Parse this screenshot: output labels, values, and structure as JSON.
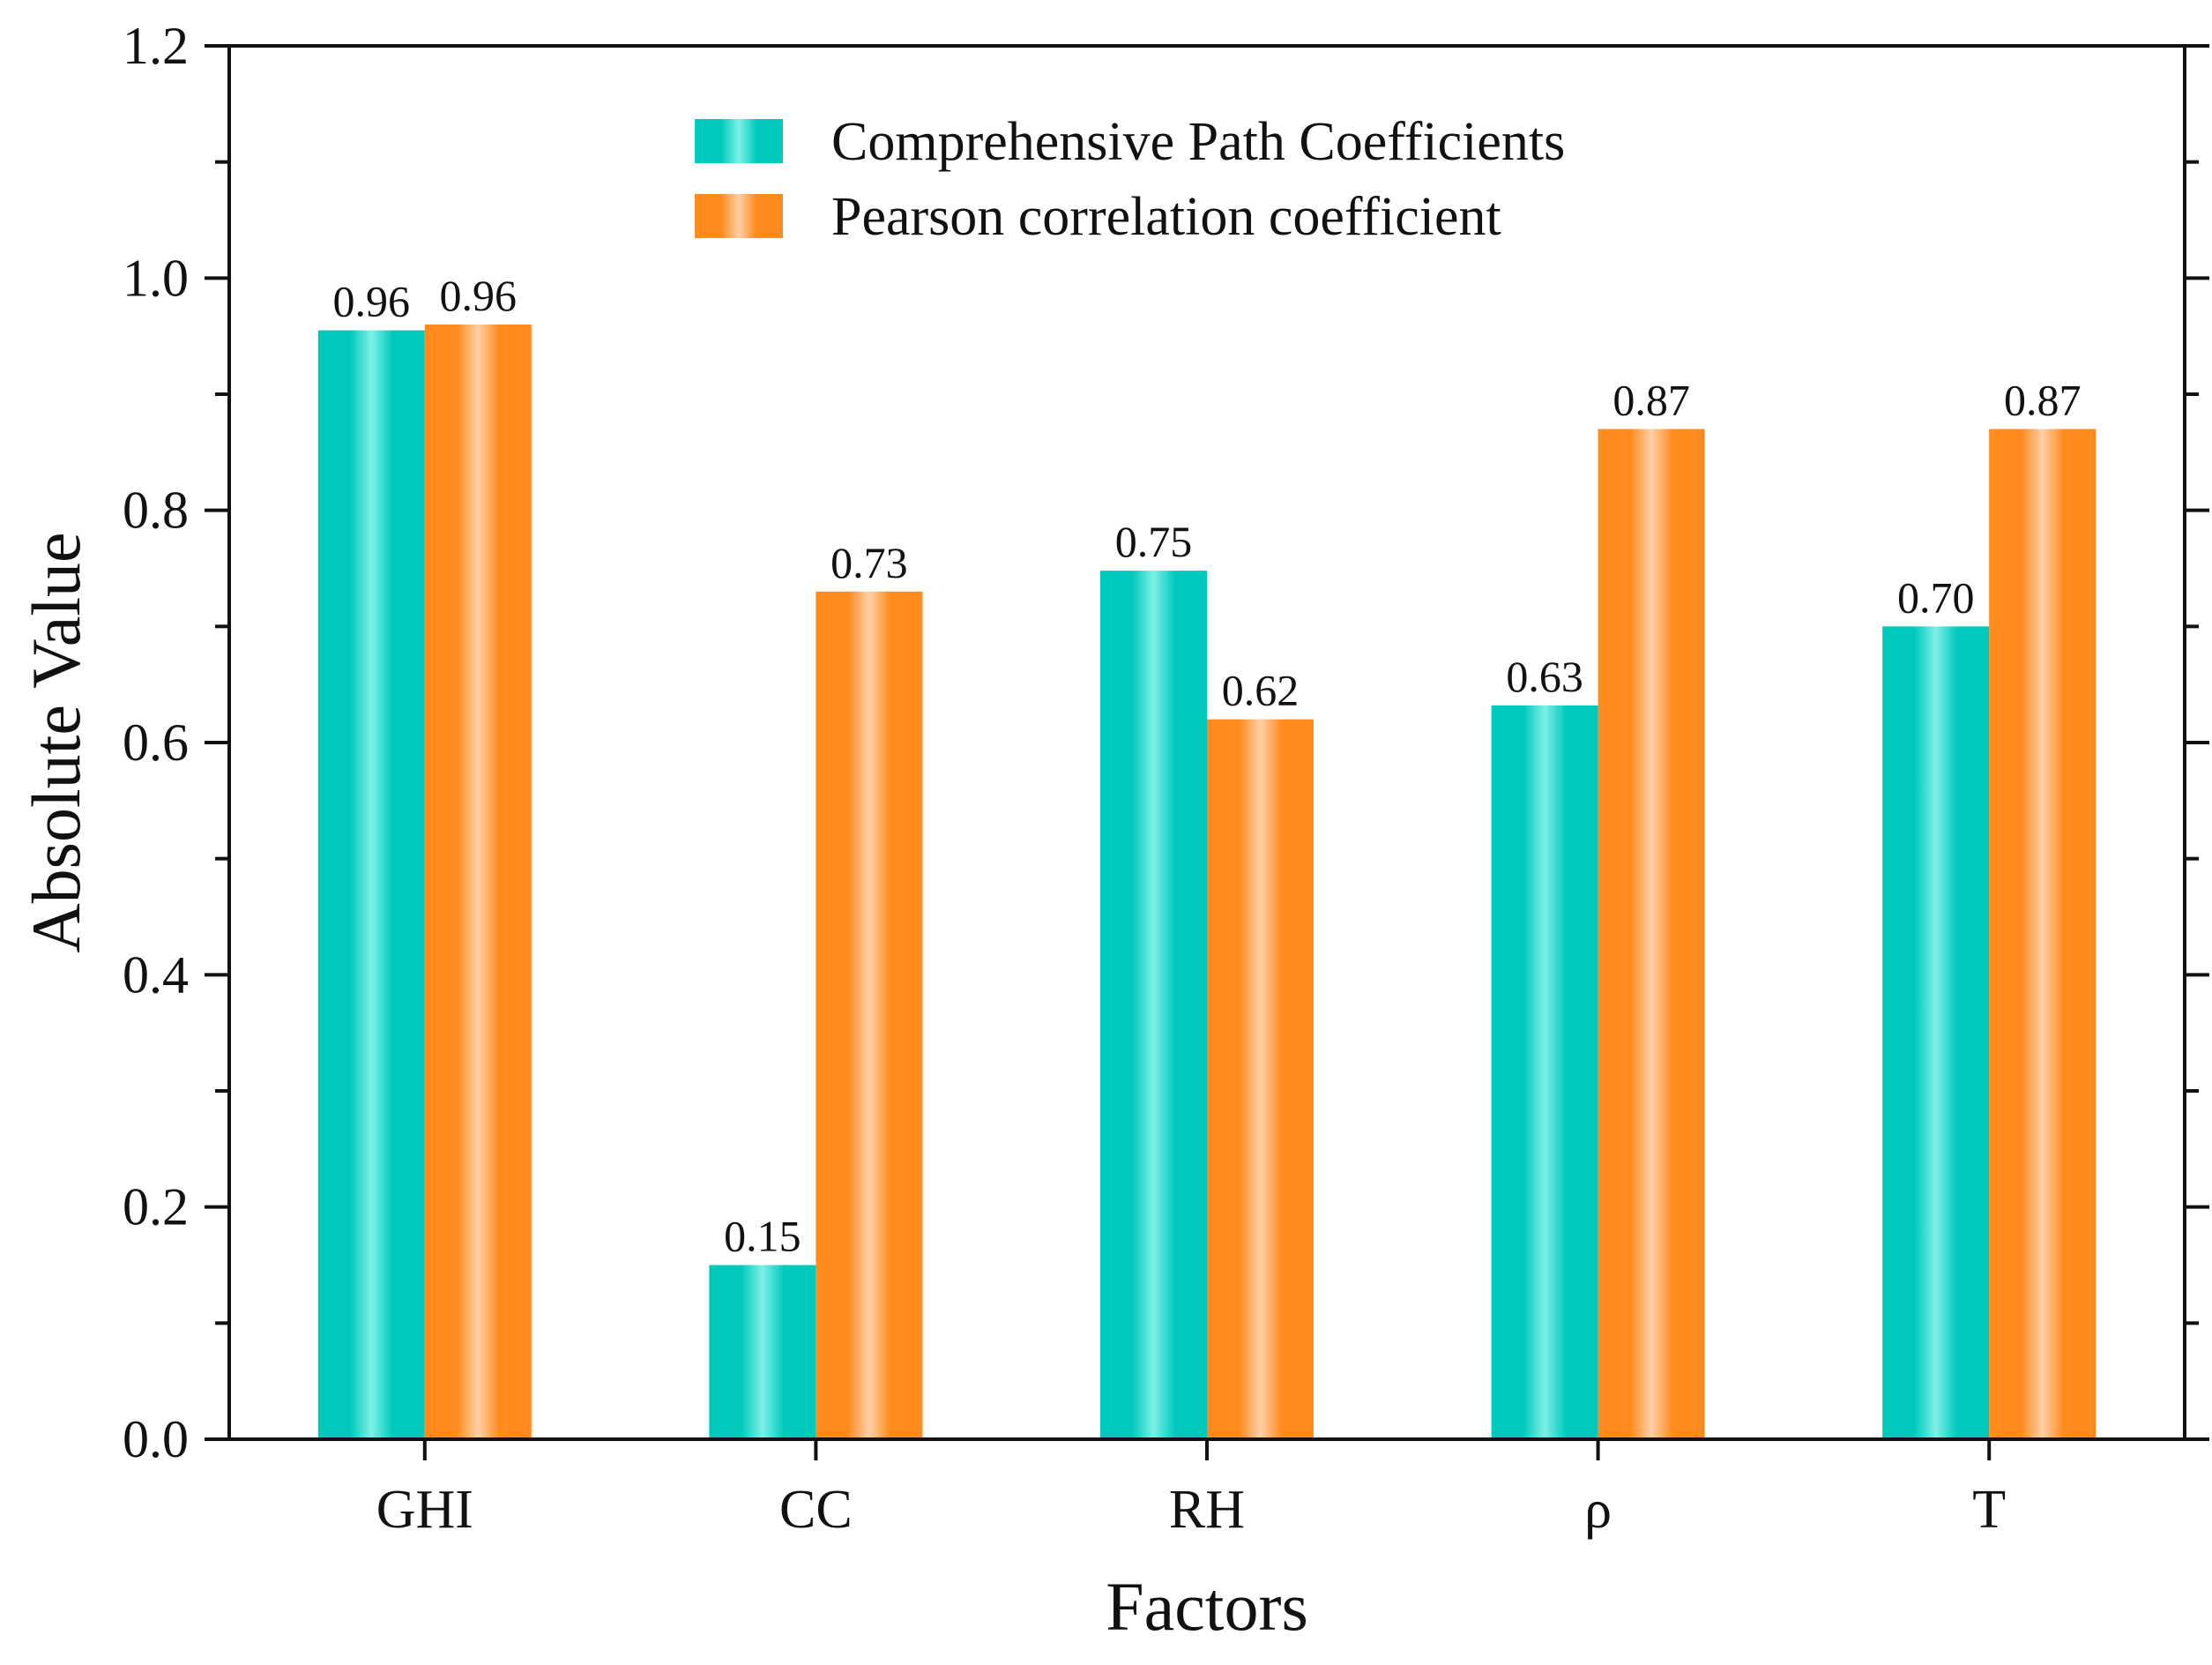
{
  "chart_data": {
    "type": "bar",
    "title": "",
    "xlabel": "Factors",
    "ylabel": "Absolute Value",
    "categories": [
      "GHI",
      "CC",
      "RH",
      "ρ",
      "T"
    ],
    "ylim": [
      0,
      1.2
    ],
    "yticks": [
      0.0,
      0.2,
      0.4,
      0.6,
      0.8,
      1.0,
      1.2
    ],
    "ytick_labels": [
      "0.0",
      "0.2",
      "0.4",
      "0.6",
      "0.8",
      "1.0",
      "1.2"
    ],
    "grid": false,
    "legend_position": "top-center",
    "series": [
      {
        "name": "Comprehensive Path Coefficients",
        "values": [
          0.955,
          0.15,
          0.748,
          0.632,
          0.7
        ],
        "labels": [
          "0.96",
          "0.15",
          "0.75",
          "0.63",
          "0.70"
        ],
        "color": "#00C9BC",
        "highlight": "#7FF0E8"
      },
      {
        "name": "Pearson correlation coefficient",
        "values": [
          0.96,
          0.73,
          0.62,
          0.87,
          0.87
        ],
        "labels": [
          "0.96",
          "0.73",
          "0.62",
          "0.87",
          "0.87"
        ],
        "color": "#FF8A1E",
        "highlight": "#FFD0A6"
      }
    ]
  }
}
